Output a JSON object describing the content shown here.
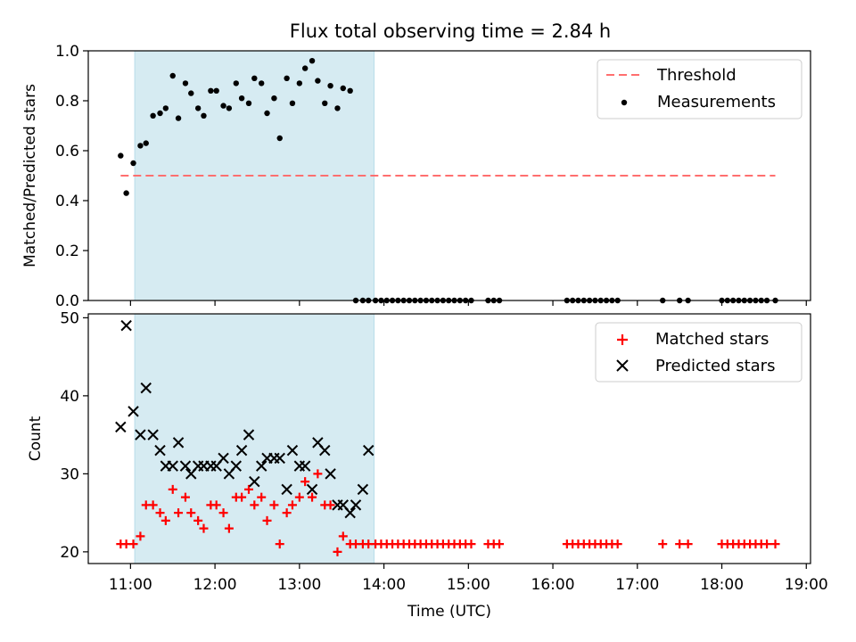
{
  "title": "Flux total observing time = 2.84 h",
  "colors": {
    "shade": "#add8e6",
    "threshold": "#ff6f6f",
    "matched": "#ff0000",
    "predicted": "#000000",
    "measurement": "#000000"
  },
  "chart_data": [
    {
      "type": "scatter",
      "ylabel": "Matched/Predicted stars",
      "ylim": [
        0,
        1.0
      ],
      "xlim_hours": [
        10.5,
        19.05
      ],
      "yticks": [
        0.0,
        0.2,
        0.4,
        0.6,
        0.8,
        1.0
      ],
      "ytick_labels": [
        "0.0",
        "0.2",
        "0.4",
        "0.6",
        "0.8",
        "1.0"
      ],
      "shaded_region": [
        "11:03",
        "13:53"
      ],
      "legend": {
        "placement": "upper right",
        "entries": [
          "Threshold",
          "Measurements"
        ]
      },
      "threshold": {
        "name": "Threshold",
        "value": 0.5,
        "x_range": [
          "10:53",
          "18:38"
        ],
        "style": "dashed"
      },
      "series": [
        {
          "name": "Measurements",
          "x": [
            "10:53",
            "10:57",
            "11:02",
            "11:07",
            "11:11",
            "11:16",
            "11:21",
            "11:25",
            "11:30",
            "11:34",
            "11:39",
            "11:43",
            "11:48",
            "11:52",
            "11:57",
            "12:01",
            "12:06",
            "12:10",
            "12:15",
            "12:19",
            "12:24",
            "12:28",
            "12:33",
            "12:37",
            "12:42",
            "12:46",
            "12:51",
            "12:55",
            "13:00",
            "13:04",
            "13:09",
            "13:13",
            "13:18",
            "13:22",
            "13:27",
            "13:31",
            "13:36",
            "13:40",
            "13:45",
            "13:49",
            "13:54",
            "13:58",
            "14:02",
            "14:06",
            "14:10",
            "14:14",
            "14:18",
            "14:22",
            "14:26",
            "14:30",
            "14:34",
            "14:38",
            "14:42",
            "14:46",
            "14:50",
            "14:54",
            "14:58",
            "15:02",
            "15:14",
            "15:18",
            "15:22",
            "16:10",
            "16:14",
            "16:18",
            "16:22",
            "16:26",
            "16:30",
            "16:34",
            "16:38",
            "16:42",
            "16:46",
            "17:18",
            "17:30",
            "17:36",
            "18:00",
            "18:04",
            "18:08",
            "18:12",
            "18:16",
            "18:20",
            "18:24",
            "18:28",
            "18:32",
            "18:38"
          ],
          "y": [
            0.58,
            0.43,
            0.55,
            0.62,
            0.63,
            0.74,
            0.75,
            0.77,
            0.9,
            0.73,
            0.87,
            0.83,
            0.77,
            0.74,
            0.84,
            0.84,
            0.78,
            0.77,
            0.87,
            0.81,
            0.79,
            0.89,
            0.87,
            0.75,
            0.81,
            0.65,
            0.89,
            0.79,
            0.87,
            0.93,
            0.96,
            0.88,
            0.79,
            0.86,
            0.77,
            0.85,
            0.84,
            0.0,
            0.0,
            0.0,
            0.0,
            0.0,
            0.0,
            0.0,
            0.0,
            0.0,
            0.0,
            0.0,
            0.0,
            0.0,
            0.0,
            0.0,
            0.0,
            0.0,
            0.0,
            0.0,
            0.0,
            0.0,
            0.0,
            0.0,
            0.0,
            0.0,
            0.0,
            0.0,
            0.0,
            0.0,
            0.0,
            0.0,
            0.0,
            0.0,
            0.0,
            0.0,
            0.0,
            0.0,
            0.0,
            0.0,
            0.0,
            0.0,
            0.0,
            0.0,
            0.0,
            0.0,
            0.0,
            0.0
          ]
        }
      ]
    },
    {
      "type": "scatter",
      "xlabel": "Time (UTC)",
      "ylabel": "Count",
      "ylim": [
        18.5,
        50.5
      ],
      "xlim_hours": [
        10.5,
        19.05
      ],
      "yticks": [
        20,
        30,
        40,
        50
      ],
      "ytick_labels": [
        "20",
        "30",
        "40",
        "50"
      ],
      "xticks": [
        "11:00",
        "12:00",
        "13:00",
        "14:00",
        "15:00",
        "16:00",
        "17:00",
        "18:00",
        "19:00"
      ],
      "shaded_region": [
        "11:03",
        "13:53"
      ],
      "legend": {
        "placement": "upper right",
        "entries": [
          "Matched stars",
          "Predicted stars"
        ]
      },
      "series": [
        {
          "name": "Matched stars",
          "x": [
            "10:53",
            "10:57",
            "11:02",
            "11:07",
            "11:11",
            "11:16",
            "11:21",
            "11:25",
            "11:30",
            "11:34",
            "11:39",
            "11:43",
            "11:48",
            "11:52",
            "11:57",
            "12:01",
            "12:06",
            "12:10",
            "12:15",
            "12:19",
            "12:24",
            "12:28",
            "12:33",
            "12:37",
            "12:42",
            "12:46",
            "12:51",
            "12:55",
            "13:00",
            "13:04",
            "13:09",
            "13:13",
            "13:18",
            "13:22",
            "13:27",
            "13:31",
            "13:36",
            "13:40",
            "13:45",
            "13:49",
            "13:54",
            "13:58",
            "14:02",
            "14:06",
            "14:10",
            "14:14",
            "14:18",
            "14:22",
            "14:26",
            "14:30",
            "14:34",
            "14:38",
            "14:42",
            "14:46",
            "14:50",
            "14:54",
            "14:58",
            "15:02",
            "15:14",
            "15:18",
            "15:22",
            "16:10",
            "16:14",
            "16:18",
            "16:22",
            "16:26",
            "16:30",
            "16:34",
            "16:38",
            "16:42",
            "16:46",
            "17:18",
            "17:30",
            "17:36",
            "18:00",
            "18:04",
            "18:08",
            "18:12",
            "18:16",
            "18:20",
            "18:24",
            "18:28",
            "18:32",
            "18:38"
          ],
          "y": [
            21,
            21,
            21,
            22,
            26,
            26,
            25,
            24,
            28,
            25,
            27,
            25,
            24,
            23,
            26,
            26,
            25,
            23,
            27,
            27,
            28,
            26,
            27,
            24,
            26,
            21,
            25,
            26,
            27,
            29,
            27,
            30,
            26,
            26,
            20,
            22,
            21,
            21,
            21,
            21,
            21,
            21,
            21,
            21,
            21,
            21,
            21,
            21,
            21,
            21,
            21,
            21,
            21,
            21,
            21,
            21,
            21,
            21,
            21,
            21,
            21,
            21,
            21,
            21,
            21,
            21,
            21,
            21,
            21,
            21,
            21,
            21,
            21,
            21,
            21,
            21,
            21,
            21,
            21,
            21,
            21,
            21,
            21,
            21
          ]
        },
        {
          "name": "Predicted stars",
          "x": [
            "10:53",
            "10:57",
            "11:02",
            "11:07",
            "11:11",
            "11:16",
            "11:21",
            "11:25",
            "11:30",
            "11:34",
            "11:39",
            "11:43",
            "11:48",
            "11:52",
            "11:57",
            "12:01",
            "12:06",
            "12:10",
            "12:15",
            "12:19",
            "12:24",
            "12:28",
            "12:33",
            "12:37",
            "12:42",
            "12:46",
            "12:51",
            "12:55",
            "13:00",
            "13:04",
            "13:09",
            "13:13",
            "13:18",
            "13:22",
            "13:27",
            "13:31",
            "13:36",
            "13:40",
            "13:45",
            "13:49"
          ],
          "y": [
            36,
            49,
            38,
            35,
            41,
            35,
            33,
            31,
            31,
            34,
            31,
            30,
            31,
            31,
            31,
            31,
            32,
            30,
            31,
            33,
            35,
            29,
            31,
            32,
            32,
            32,
            28,
            33,
            31,
            31,
            28,
            34,
            33,
            30,
            26,
            26,
            25,
            26,
            28,
            33
          ]
        }
      ]
    }
  ]
}
